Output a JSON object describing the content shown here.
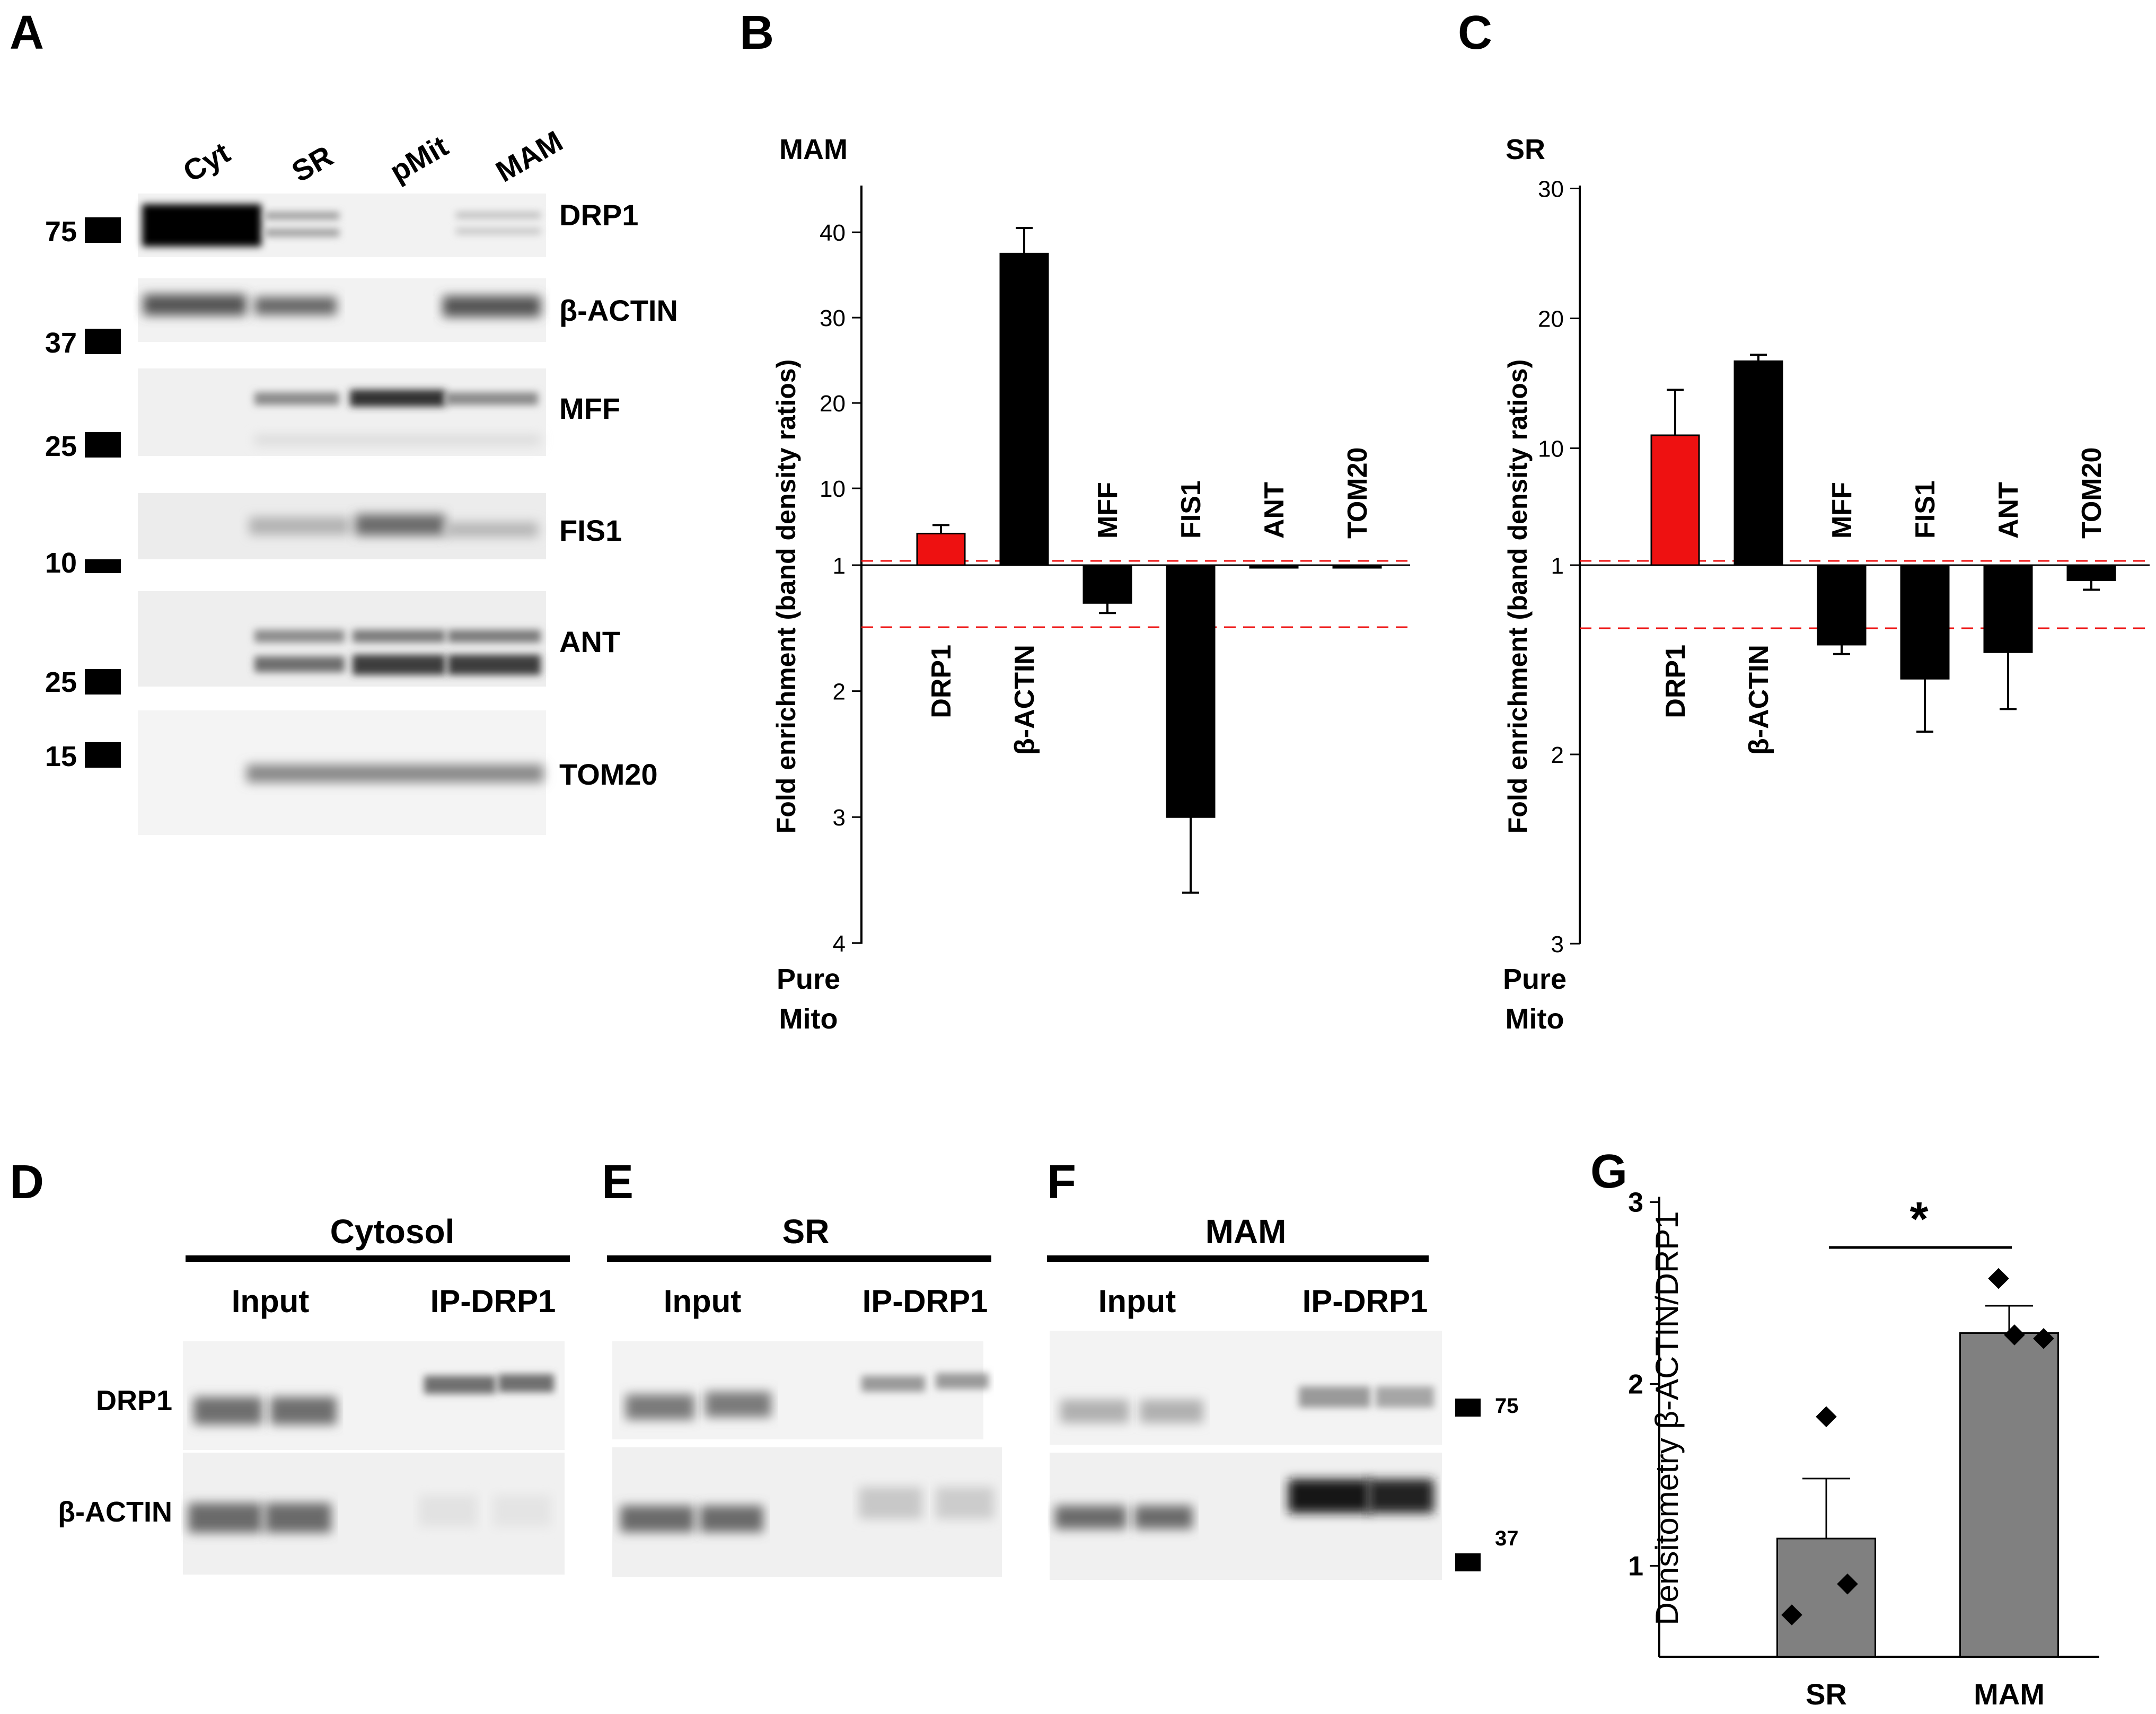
{
  "panels": {
    "A": {
      "letter": "A",
      "lanes": [
        "Cyt",
        "SR",
        "pMit",
        "MAM"
      ],
      "markers": [
        "75",
        "37",
        "25",
        "10",
        "25",
        "15"
      ],
      "proteins": [
        "DRP1",
        "β-ACTIN",
        "MFF",
        "FIS1",
        "ANT",
        "TOM20"
      ]
    },
    "D": {
      "letter": "D",
      "header": "Cytosol",
      "col_labels": [
        "Input",
        "IP-DRP1"
      ],
      "row_labels": [
        "DRP1",
        "β-ACTIN"
      ]
    },
    "E": {
      "letter": "E",
      "header": "SR",
      "col_labels": [
        "Input",
        "IP-DRP1"
      ]
    },
    "F": {
      "letter": "F",
      "header": "MAM",
      "col_labels": [
        "Input",
        "IP-DRP1"
      ],
      "markers": [
        "75",
        "37"
      ]
    }
  },
  "chart_data": [
    {
      "panel": "B",
      "type": "bar",
      "corner_label": "MAM",
      "bottom_label": [
        "Pure",
        "Mito"
      ],
      "ylabel": "Fold enrichment (band density ratios)",
      "y_ticks_up": [
        1,
        10,
        20,
        30,
        40
      ],
      "y_ticks_down": [
        2,
        3,
        4
      ],
      "reference_lines": [
        1.0,
        0.67
      ],
      "categories": [
        "DRP1",
        "β-ACTIN",
        "MFF",
        "FIS1",
        "ANT",
        "TOM20"
      ],
      "values": [
        4.7,
        37.5,
        -1.3,
        -3.0,
        -1.01,
        -1.01
      ],
      "errors": [
        1.0,
        3.0,
        0.08,
        0.6,
        0,
        0
      ],
      "colors": [
        "#ee1111",
        "#000000",
        "#000000",
        "#000000",
        "#000000",
        "#000000"
      ]
    },
    {
      "panel": "C",
      "type": "bar",
      "corner_label": "SR",
      "bottom_label": [
        "Pure",
        "Mito"
      ],
      "ylabel": "Fold enrichment (band density ratios)",
      "y_ticks_up": [
        1,
        10,
        20,
        30
      ],
      "y_ticks_down": [
        2,
        3
      ],
      "reference_lines": [
        1.0,
        0.75
      ],
      "categories": [
        "DRP1",
        "β-ACTIN",
        "MFF",
        "FIS1",
        "ANT",
        "TOM20"
      ],
      "values": [
        11,
        16.7,
        -1.42,
        -1.6,
        -1.46,
        -1.08
      ],
      "errors": [
        3.5,
        0.5,
        0.05,
        0.28,
        0.3,
        0.05
      ],
      "colors": [
        "#ee1111",
        "#000000",
        "#000000",
        "#000000",
        "#000000",
        "#000000"
      ]
    },
    {
      "panel": "G",
      "type": "bar",
      "title": "*",
      "ylabel": "Densitometry β-ACTIN/DRP1",
      "ylim": [
        0.5,
        3
      ],
      "y_ticks": [
        1,
        2,
        3
      ],
      "categories": [
        "SR",
        "MAM"
      ],
      "values": [
        1.15,
        2.28
      ],
      "errors": [
        0.33,
        0.15
      ],
      "points": [
        [
          1.82,
          0.73,
          0.9
        ],
        [
          2.58,
          2.27,
          2.25
        ]
      ],
      "color": "#808080"
    }
  ]
}
